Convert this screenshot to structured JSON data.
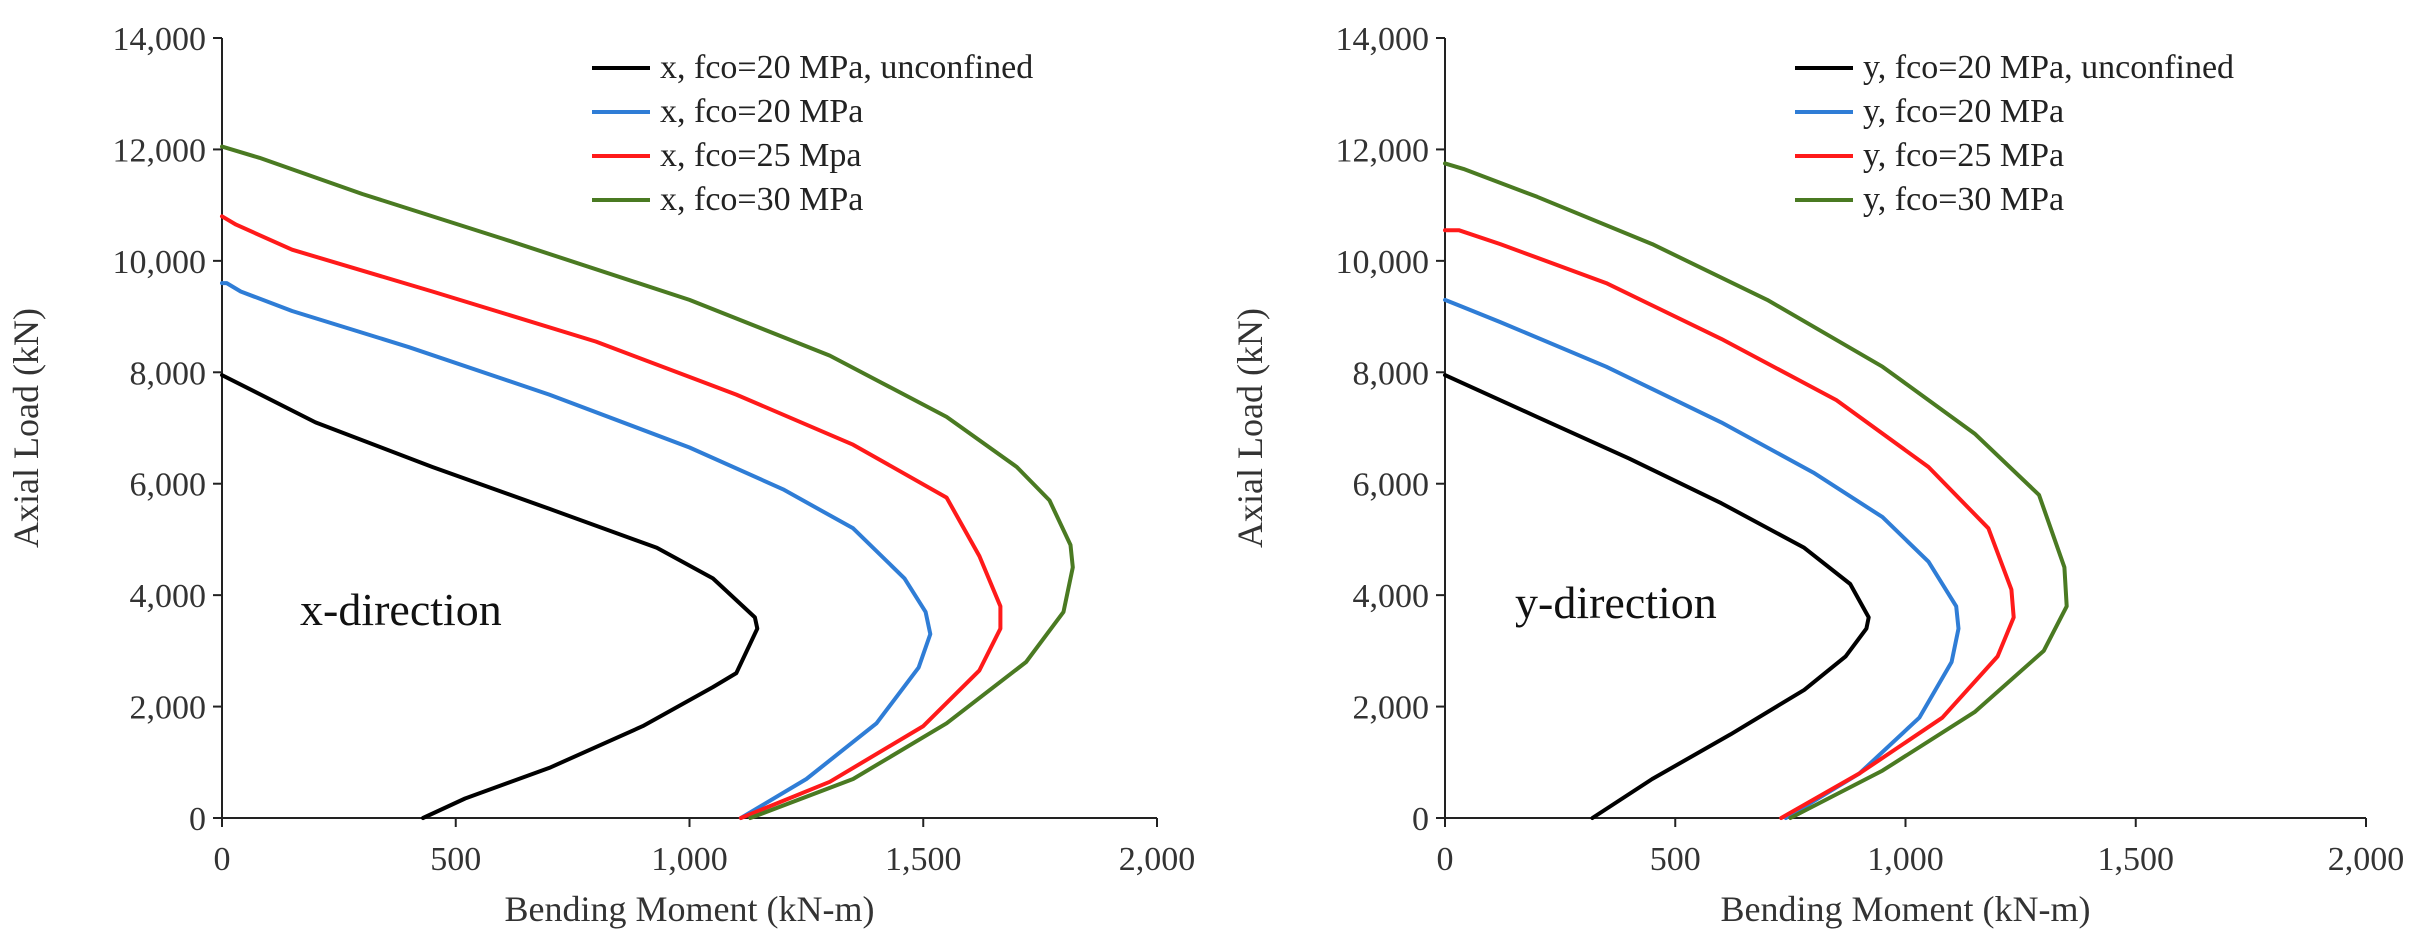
{
  "chart_data": [
    {
      "type": "line",
      "panel": "left",
      "title": "",
      "annotation": "x-direction",
      "xlabel": "Bending Moment (kN-m)",
      "ylabel": "Axial Load (kN)",
      "xlim": [
        0,
        2000
      ],
      "ylim": [
        0,
        14000
      ],
      "xticks": [
        0,
        500,
        1000,
        1500,
        2000
      ],
      "xtick_labels": [
        "0",
        "500",
        "1,000",
        "1,500",
        "2,000"
      ],
      "yticks": [
        0,
        2000,
        4000,
        6000,
        8000,
        10000,
        12000,
        14000
      ],
      "ytick_labels": [
        "0",
        "2,000",
        "4,000",
        "6,000",
        "8,000",
        "10,000",
        "12,000",
        "14,000"
      ],
      "legend_position": "top-right",
      "series": [
        {
          "name": "x, fco=20 MPa, unconfined",
          "color": "#000000",
          "x": [
            430,
            520,
            700,
            900,
            1050,
            1100,
            1145,
            1140,
            1050,
            930,
            700,
            450,
            200,
            0
          ],
          "y": [
            0,
            350,
            900,
            1650,
            2350,
            2600,
            3400,
            3600,
            4300,
            4850,
            5550,
            6300,
            7100,
            7950
          ]
        },
        {
          "name": "x, fco=20 MPa",
          "color": "#2f7dd6",
          "x": [
            1110,
            1250,
            1400,
            1490,
            1515,
            1505,
            1460,
            1350,
            1200,
            1000,
            700,
            400,
            150,
            40,
            10,
            0
          ],
          "y": [
            0,
            700,
            1700,
            2700,
            3300,
            3700,
            4300,
            5200,
            5900,
            6650,
            7600,
            8450,
            9100,
            9450,
            9600,
            9600
          ]
        },
        {
          "name": "x, fco=25 Mpa",
          "color": "#ff1a1a",
          "x": [
            1110,
            1300,
            1500,
            1620,
            1665,
            1665,
            1620,
            1550,
            1350,
            1100,
            800,
            450,
            150,
            30,
            0
          ],
          "y": [
            0,
            650,
            1650,
            2650,
            3400,
            3800,
            4700,
            5750,
            6700,
            7600,
            8550,
            9450,
            10200,
            10650,
            10800
          ]
        },
        {
          "name": "x, fco=30 MPa",
          "color": "#4a7a22",
          "x": [
            1130,
            1350,
            1550,
            1720,
            1800,
            1820,
            1815,
            1770,
            1700,
            1550,
            1300,
            1000,
            600,
            300,
            80,
            0
          ],
          "y": [
            0,
            700,
            1700,
            2800,
            3700,
            4500,
            4900,
            5700,
            6300,
            7200,
            8300,
            9300,
            10400,
            11200,
            11850,
            12050
          ]
        }
      ]
    },
    {
      "type": "line",
      "panel": "right",
      "title": "",
      "annotation": "y-direction",
      "xlabel": "Bending Moment (kN-m)",
      "ylabel": "Axial Load (kN)",
      "xlim": [
        0,
        2000
      ],
      "ylim": [
        0,
        14000
      ],
      "xticks": [
        0,
        500,
        1000,
        1500,
        2000
      ],
      "xtick_labels": [
        "0",
        "500",
        "1,000",
        "1,500",
        "2,000"
      ],
      "yticks": [
        0,
        2000,
        4000,
        6000,
        8000,
        10000,
        12000,
        14000
      ],
      "ytick_labels": [
        "0",
        "2,000",
        "4,000",
        "6,000",
        "8,000",
        "10,000",
        "12,000",
        "14,000"
      ],
      "legend_position": "top-right",
      "series": [
        {
          "name": "y, fco=20 MPa, unconfined",
          "color": "#000000",
          "x": [
            320,
            450,
            620,
            780,
            870,
            915,
            920,
            880,
            780,
            600,
            400,
            200,
            0
          ],
          "y": [
            0,
            700,
            1500,
            2300,
            2900,
            3400,
            3600,
            4200,
            4850,
            5650,
            6450,
            7200,
            7950
          ]
        },
        {
          "name": "y, fco=20 MPa",
          "color": "#2f7dd6",
          "x": [
            740,
            900,
            1030,
            1100,
            1115,
            1110,
            1050,
            950,
            800,
            600,
            350,
            120,
            30,
            0
          ],
          "y": [
            0,
            800,
            1800,
            2800,
            3400,
            3800,
            4600,
            5400,
            6200,
            7100,
            8100,
            8900,
            9200,
            9300
          ]
        },
        {
          "name": "y, fco=25 MPa",
          "color": "#ff1a1a",
          "x": [
            730,
            900,
            1080,
            1200,
            1235,
            1230,
            1180,
            1050,
            850,
            600,
            350,
            120,
            30,
            0
          ],
          "y": [
            0,
            800,
            1800,
            2900,
            3600,
            4100,
            5200,
            6300,
            7500,
            8600,
            9600,
            10300,
            10550,
            10550
          ]
        },
        {
          "name": "y, fco=30 MPa",
          "color": "#4a7a22",
          "x": [
            750,
            950,
            1150,
            1300,
            1350,
            1345,
            1290,
            1150,
            950,
            700,
            450,
            200,
            40,
            0
          ],
          "y": [
            0,
            850,
            1900,
            3000,
            3800,
            4500,
            5800,
            6900,
            8100,
            9300,
            10300,
            11150,
            11650,
            11750
          ]
        }
      ]
    }
  ]
}
